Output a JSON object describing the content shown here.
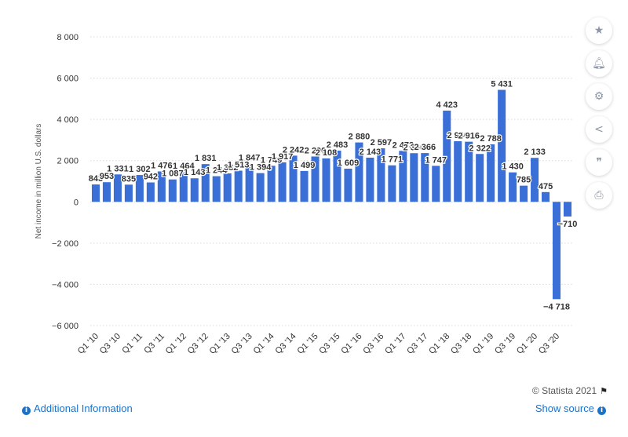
{
  "chart_data": {
    "type": "bar",
    "ylabel": "Net income in million U.S. dollars",
    "ylim": [
      -6000,
      8000
    ],
    "yticks": [
      -6000,
      -4000,
      -2000,
      0,
      2000,
      4000,
      6000,
      8000
    ],
    "ytick_labels": [
      "−6 000",
      "−4 000",
      "−2 000",
      "0",
      "2 000",
      "4 000",
      "6 000",
      "8 000"
    ],
    "grid": true,
    "bar_color": "#3a6fd8",
    "categories": [
      "Q1 '10",
      "Q2 '10",
      "Q3 '10",
      "Q4 '10",
      "Q1 '11",
      "Q2 '11",
      "Q3 '11",
      "Q4 '11",
      "Q1 '12",
      "Q2 '12",
      "Q3 '12",
      "Q4 '12",
      "Q1 '13",
      "Q2 '13",
      "Q3 '13",
      "Q4 '13",
      "Q1 '14",
      "Q2 '14",
      "Q3 '14",
      "Q4 '14",
      "Q1 '15",
      "Q2 '15",
      "Q3 '15",
      "Q4 '15",
      "Q1 '16",
      "Q2 '16",
      "Q3 '16",
      "Q4 '16",
      "Q1 '17",
      "Q2 '17",
      "Q3 '17",
      "Q4 '17",
      "Q1 '18",
      "Q2 '18",
      "Q3 '18",
      "Q4 '18",
      "Q1 '19",
      "Q2 '19",
      "Q3 '19",
      "Q4 '19",
      "Q1 '20",
      "Q2 '20",
      "Q3 '20",
      "Q4 '20"
    ],
    "xtick_labels": [
      "Q1 '10",
      "Q3 '10",
      "Q1 '11",
      "Q3 '11",
      "Q1 '12",
      "Q3 '12",
      "Q1 '13",
      "Q3 '13",
      "Q1 '14",
      "Q3 '14",
      "Q1 '15",
      "Q3 '15",
      "Q1 '16",
      "Q3 '16",
      "Q1 '17",
      "Q3 '17",
      "Q1 '18",
      "Q3 '18",
      "Q1 '19",
      "Q3 '19",
      "Q1 '20",
      "Q3 '20"
    ],
    "values": [
      843,
      953,
      1331,
      835,
      1302,
      942,
      1476,
      1087,
      1464,
      1143,
      1831,
      1244,
      1382,
      1513,
      1847,
      1394,
      1749,
      1917,
      2242,
      1499,
      2200,
      2108,
      2483,
      1609,
      2880,
      2143,
      2597,
      1771,
      2473,
      2360,
      2366,
      1747,
      4423,
      2940,
      2916,
      2322,
      2788,
      5431,
      1430,
      785,
      2133,
      475,
      -4718,
      -710
    ],
    "data_labels": [
      "843",
      "953",
      "1 331",
      "835",
      "1 302",
      "942",
      "1 476",
      "1 087",
      "1 464",
      "1 143",
      "1 831",
      "1 244",
      "1 382",
      "1 513",
      "1 847",
      "1 394",
      "1 749",
      "1 917",
      "2 242",
      "1 499",
      "2 200",
      "2 108",
      "2 483",
      "1 609",
      "2 880",
      "2 143",
      "2 597",
      "1 771",
      "2 473",
      "2 360",
      "2 366",
      "1 747",
      "4 423",
      "2 940",
      "2 916",
      "2 322",
      "2 788",
      "5 431",
      "1 430",
      "785",
      "2 133",
      "475",
      "−4 718",
      "−710"
    ]
  },
  "footer": {
    "credit": "© Statista 2021",
    "additional_info": "Additional Information",
    "show_source": "Show source"
  },
  "toolbar": {
    "icons": [
      "star-icon",
      "bell-icon",
      "gear-icon",
      "share-icon",
      "quote-icon",
      "print-icon"
    ]
  }
}
